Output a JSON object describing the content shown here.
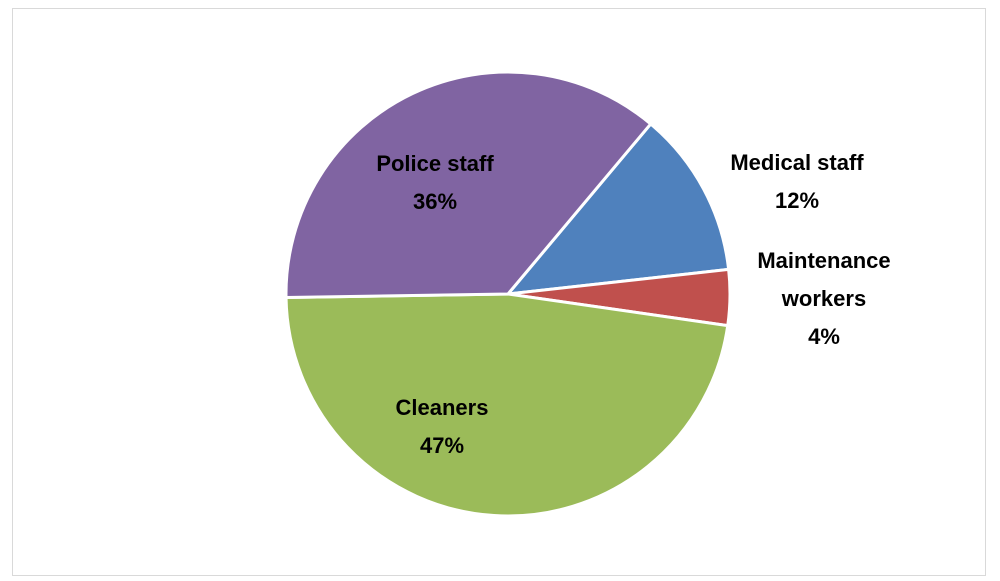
{
  "chart_data": {
    "type": "pie",
    "slices": [
      {
        "label": "Medical staff",
        "label_lines": [
          "Medical staff"
        ],
        "percent_text": "12%",
        "value": 12,
        "color": "#4f81bd"
      },
      {
        "label": "Maintenance workers",
        "label_lines": [
          "Maintenance",
          "workers"
        ],
        "percent_text": "4%",
        "value": 4,
        "color": "#c0504d"
      },
      {
        "label": "Cleaners",
        "label_lines": [
          "Cleaners"
        ],
        "percent_text": "47%",
        "value": 47,
        "color": "#9bbb59"
      },
      {
        "label": "Police staff",
        "label_lines": [
          "Police staff"
        ],
        "percent_text": "36%",
        "value": 36,
        "color": "#8064a2"
      }
    ]
  }
}
